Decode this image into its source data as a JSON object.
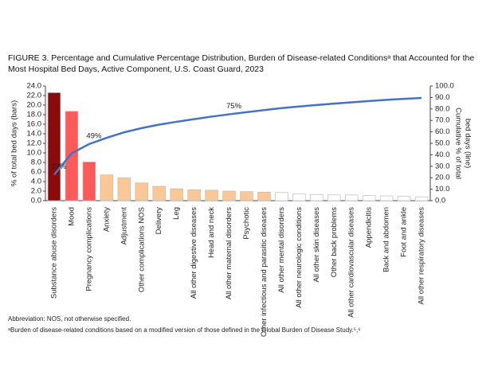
{
  "chart_data": {
    "type": "bar_line",
    "title": "FIGURE 3. Percentage and Cumulative Percentage Distribution, Burden of Disease-related Conditionsᵃ that Accounted for the Most Hospital Bed Days, Active Component, U.S. Coast Guard, 2023",
    "ylabel": "% of total bed days (bars)",
    "y2label": [
      "Cumulative % of total",
      "bed days (line)"
    ],
    "categories": [
      "Substance abuse disorders",
      "Mood",
      "Pregnancy complications",
      "Anxiety",
      "Adjustment",
      "Other complications NOS",
      "Delivery",
      "Leg",
      "All other digestive diseases",
      "Head and neck",
      "All other maternal disorders",
      "Psychotic",
      "Other infectious and parasitic diseases",
      "All other mental disorders",
      "All other neurologic conditions",
      "All other skin diseases",
      "Other back problems",
      "All other cardiovascular diseases",
      "Appendicitis",
      "Back and abdomen",
      "Foot and ankle",
      "All other respiratory diseases"
    ],
    "series": [
      {
        "values": [
          22.6,
          18.7,
          8.1,
          5.4,
          4.8,
          3.7,
          3.0,
          2.5,
          2.3,
          2.2,
          2.0,
          1.9,
          1.8,
          1.7,
          1.4,
          1.3,
          1.2,
          1.2,
          1.1,
          1.0,
          0.9,
          0.8
        ],
        "colors": [
          "#8b0a0a",
          "#ff5a5a",
          "#ff5a5a",
          "#fac796",
          "#fac796",
          "#fac796",
          "#fac796",
          "#fac796",
          "#fac796",
          "#fac796",
          "#fac796",
          "#fac796",
          "#fac796",
          "#ffffff",
          "#ffffff",
          "#ffffff",
          "#ffffff",
          "#ffffff",
          "#ffffff",
          "#ffffff",
          "#ffffff",
          "#ffffff"
        ]
      },
      {
        "axis": "y2",
        "color": "#4472c4",
        "values": [
          22.6,
          41.3,
          49.4,
          54.8,
          59.6,
          63.3,
          66.3,
          68.8,
          71.1,
          73.3,
          75.3,
          77.2,
          79.0,
          80.7,
          82.1,
          83.4,
          84.6,
          85.8,
          86.9,
          87.9,
          88.8,
          89.6
        ],
        "value_labels": [
          "23%",
          null,
          "49%",
          null,
          null,
          null,
          null,
          null,
          null,
          null,
          "75%",
          null,
          null,
          null,
          null,
          null,
          null,
          null,
          null,
          null,
          null,
          null
        ]
      }
    ],
    "ylim": [
      0,
      24
    ],
    "yticks": [
      {
        "value": 0,
        "label": "0.0"
      },
      {
        "value": 2,
        "label": "2.0"
      },
      {
        "value": 4,
        "label": "4.0"
      },
      {
        "value": 6,
        "label": "6.0"
      },
      {
        "value": 8,
        "label": "8.0"
      },
      {
        "value": 10,
        "label": "10.0"
      },
      {
        "value": 12,
        "label": "12.0"
      },
      {
        "value": 14,
        "label": "14.0"
      },
      {
        "value": 16,
        "label": "16.0"
      },
      {
        "value": 18,
        "label": "18.0"
      },
      {
        "value": 20,
        "label": "20.0"
      },
      {
        "value": 22,
        "label": "22.0"
      },
      {
        "value": 24,
        "label": "24.0"
      }
    ],
    "y2lim": [
      0,
      100
    ],
    "y2ticks": [
      {
        "value": 0,
        "label": "0.0"
      },
      {
        "value": 10,
        "label": "10.0"
      },
      {
        "value": 20,
        "label": "20.0"
      },
      {
        "value": 30,
        "label": "30.0"
      },
      {
        "value": 40,
        "label": "40.0"
      },
      {
        "value": 50,
        "label": "50.0"
      },
      {
        "value": 60,
        "label": "60.0"
      },
      {
        "value": 70,
        "label": "70.0"
      },
      {
        "value": 80,
        "label": "80.0"
      },
      {
        "value": 90,
        "label": "90.0"
      },
      {
        "value": 100,
        "label": "100.0"
      }
    ],
    "notes": [
      "Abbreviation: NOS, not otherwise specified.",
      "ᵃBurden of disease-related conditions based on a modified version of those defined in the Global Burden of Disease Study.⁵,⁶"
    ]
  }
}
